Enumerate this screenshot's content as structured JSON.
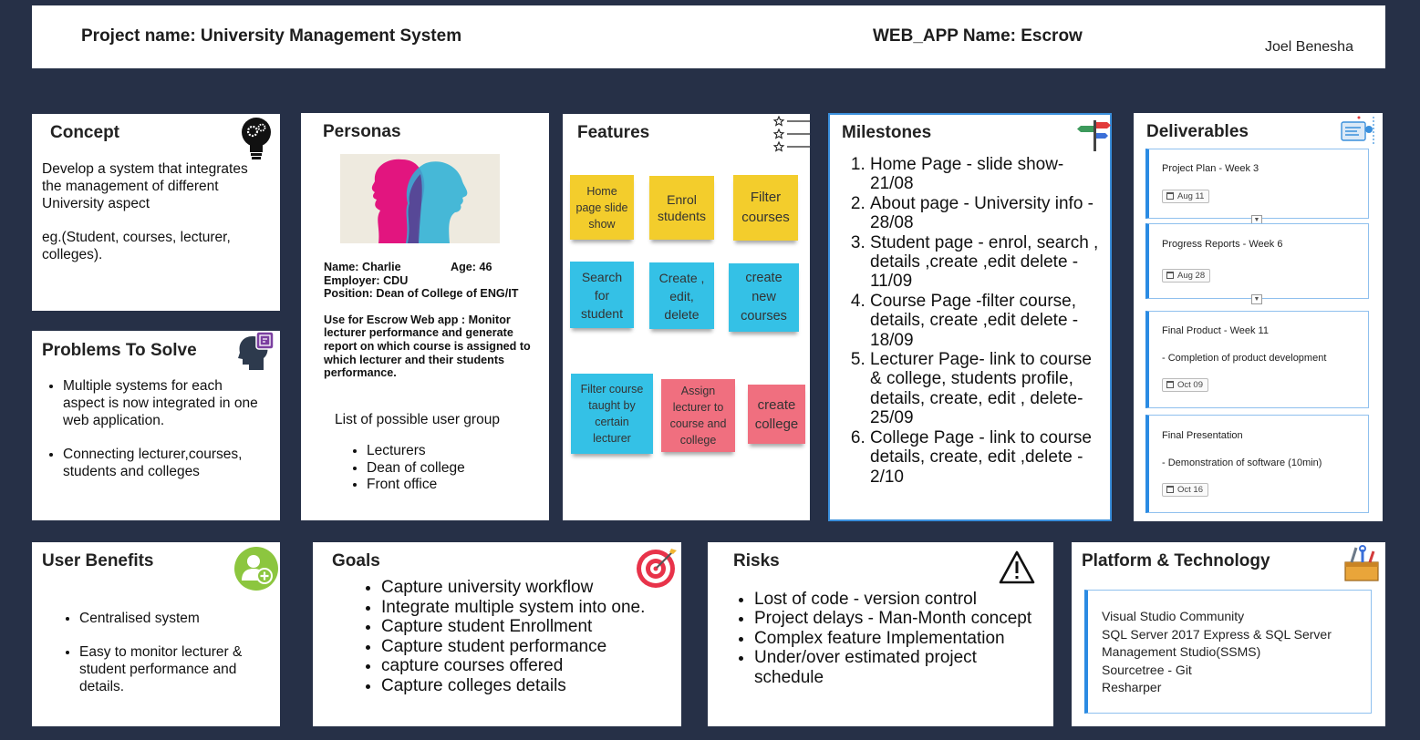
{
  "header": {
    "project": "Project name: University Management System",
    "webapp": "WEB_APP Name: Escrow",
    "author": "Joel Benesha"
  },
  "concept": {
    "title": "Concept",
    "description": "Develop a system that integrates the management of different University aspect",
    "example": "eg.(Student, courses, lecturer, colleges)."
  },
  "problems": {
    "title": "Problems To Solve",
    "items": [
      "Multiple systems for each aspect is now integrated in one web application.",
      "Connecting lecturer,courses, students and colleges"
    ]
  },
  "personas": {
    "title": "Personas",
    "name": "Name: Charlie",
    "age": "Age: 46",
    "employer": "Employer: CDU",
    "position": "Position: Dean of College of ENG/IT",
    "use": "Use for Escrow Web app : Monitor lecturer performance and generate report on which course is assigned to which lecturer and their students performance.",
    "groups_label": "List of possible user group",
    "groups": [
      "Lecturers",
      "Dean of college",
      "Front office"
    ]
  },
  "features": {
    "title": "Features",
    "notes": [
      "Home page slide show",
      "Enrol students",
      "Filter courses",
      "Search for student",
      "Create , edit, delete",
      "create new courses",
      "Filter course taught by certain lecturer",
      "Assign lecturer to course and college",
      "create college"
    ]
  },
  "milestones": {
    "title": "Milestones",
    "items": [
      "Home Page - slide show- 21/08",
      "About page - University info - 28/08",
      "Student page - enrol, search , details ,create ,edit delete - 11/09",
      "Course Page -filter course, details, create ,edit delete - 18/09",
      "Lecturer Page- link to course & college, students profile, details, create, edit , delete- 25/09",
      "College Page - link to course details, create, edit ,delete - 2/10"
    ]
  },
  "deliverables": {
    "title": "Deliverables",
    "items": [
      {
        "title": "Project Plan - Week 3",
        "detail": "",
        "date": "Aug 11"
      },
      {
        "title": "Progress Reports - Week 6",
        "detail": "",
        "date": "Aug 28"
      },
      {
        "title": "Final Product - Week 11",
        "detail": "- Completion of product development",
        "date": "Oct 09"
      },
      {
        "title": "Final Presentation",
        "detail": "- Demonstration of software (10min)",
        "date": "Oct 16"
      }
    ]
  },
  "benefits": {
    "title": "User Benefits",
    "items": [
      "Centralised system",
      "Easy to monitor lecturer & student performance and details."
    ]
  },
  "goals": {
    "title": "Goals",
    "items": [
      "Capture university workflow",
      "Integrate multiple system into one.",
      "Capture student Enrollment",
      "Capture student performance",
      "capture courses offered",
      "Capture colleges details"
    ]
  },
  "risks": {
    "title": "Risks",
    "items": [
      "Lost of code - version control",
      "Project delays - Man-Month concept",
      "Complex feature Implementation",
      "Under/over estimated project schedule"
    ]
  },
  "platform": {
    "title": "Platform & Technology",
    "items": [
      "Visual Studio Community",
      "SQL Server 2017 Express & SQL Server Management Studio(SSMS)",
      "Sourcetree - Git",
      "Resharper"
    ]
  }
}
